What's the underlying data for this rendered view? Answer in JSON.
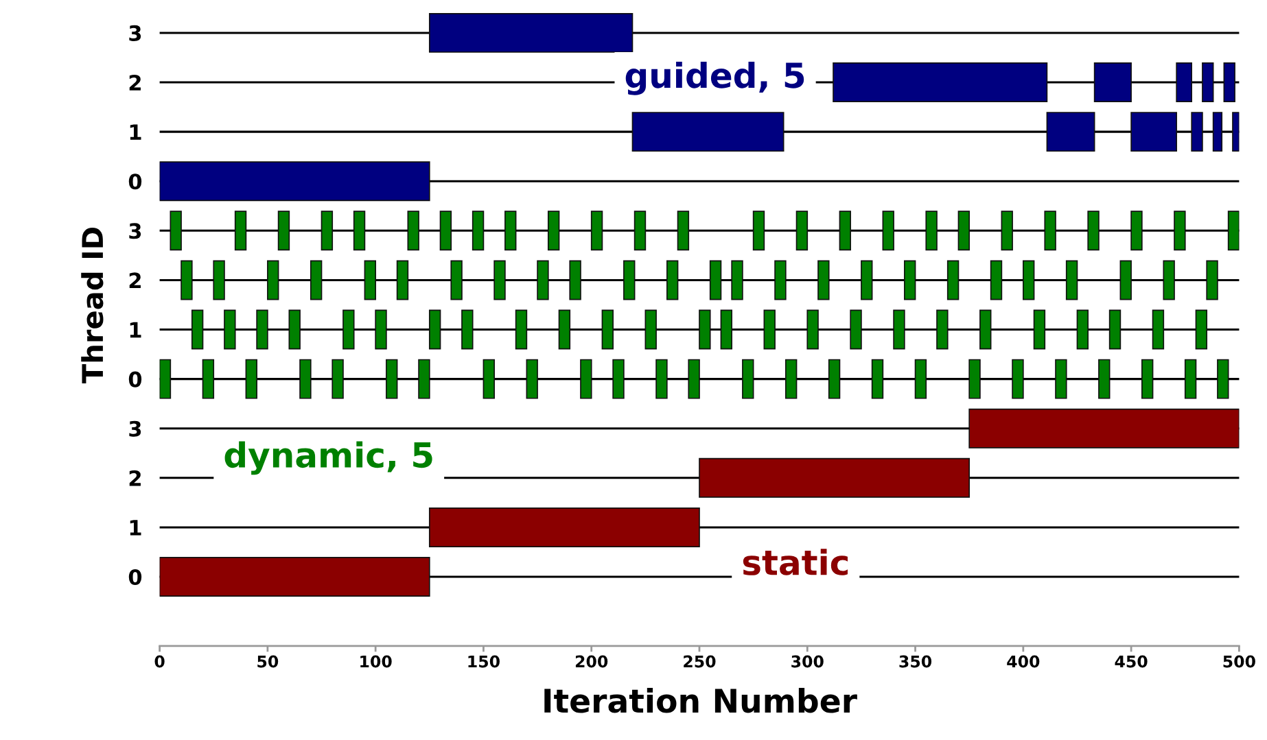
{
  "chart_data": [
    {
      "type": "bar",
      "orientation": "horizontal",
      "categories": [
        "3",
        "2",
        "1",
        "0"
      ],
      "xlim": [
        0,
        500
      ],
      "xticks": [
        0,
        50,
        100,
        150,
        200,
        250,
        300,
        350,
        400,
        450,
        500
      ],
      "grid": "y",
      "tick_labels": "y",
      "annotations": [
        "guided, 5"
      ],
      "series": [
        {
          "color": "#000080",
          "base": [
            125,
            312,
            219,
            0
          ],
          "values": [
            94,
            99,
            70,
            125
          ]
        },
        {
          "color": "#000080",
          "base": [
            null,
            433,
            411,
            null
          ],
          "values": [
            null,
            17,
            22,
            null
          ]
        },
        {
          "color": "#000080",
          "base": [
            null,
            471,
            450,
            null
          ],
          "values": [
            null,
            7,
            21,
            null
          ]
        },
        {
          "color": "#000080",
          "base": [
            null,
            483,
            478,
            null
          ],
          "values": [
            null,
            5,
            5,
            null
          ]
        },
        {
          "color": "#000080",
          "base": [
            null,
            493,
            488,
            null
          ],
          "values": [
            null,
            5,
            4,
            null
          ]
        },
        {
          "color": "#000080",
          "base": [
            null,
            null,
            497,
            null
          ],
          "values": [
            null,
            null,
            3,
            null
          ]
        }
      ]
    },
    {
      "type": "bar",
      "orientation": "horizontal",
      "categories": [
        "3",
        "2",
        "1",
        "0"
      ],
      "xlim": [
        0,
        500
      ],
      "xticks": [
        0,
        50,
        100,
        150,
        200,
        250,
        300,
        350,
        400,
        450,
        500
      ],
      "grid": "y",
      "tick_labels": "y",
      "ylabel": "Thread ID",
      "annotations": [
        "dynamic, 5"
      ],
      "series": [
        {
          "color": "#008000",
          "base": [
            5,
            10,
            15,
            0
          ],
          "values": [
            5,
            5,
            5,
            5
          ]
        },
        {
          "color": "#008000",
          "base": [
            35,
            25,
            30,
            20
          ],
          "values": [
            5,
            5,
            5,
            5
          ]
        },
        {
          "color": "#008000",
          "base": [
            55,
            50,
            45,
            40
          ],
          "values": [
            5,
            5,
            5,
            5
          ]
        },
        {
          "color": "#008000",
          "base": [
            75,
            70,
            60,
            65
          ],
          "values": [
            5,
            5,
            5,
            5
          ]
        },
        {
          "color": "#008000",
          "base": [
            90,
            95,
            85,
            80
          ],
          "values": [
            5,
            5,
            5,
            5
          ]
        },
        {
          "color": "#008000",
          "base": [
            115,
            110,
            100,
            105
          ],
          "values": [
            5,
            5,
            5,
            5
          ]
        },
        {
          "color": "#008000",
          "base": [
            130,
            135,
            125,
            120
          ],
          "values": [
            5,
            5,
            5,
            5
          ]
        },
        {
          "color": "#008000",
          "base": [
            145,
            155,
            140,
            150
          ],
          "values": [
            5,
            5,
            5,
            5
          ]
        },
        {
          "color": "#008000",
          "base": [
            160,
            175,
            165,
            170
          ],
          "values": [
            5,
            5,
            5,
            5
          ]
        },
        {
          "color": "#008000",
          "base": [
            180,
            190,
            185,
            195
          ],
          "values": [
            5,
            5,
            5,
            5
          ]
        },
        {
          "color": "#008000",
          "base": [
            200,
            215,
            205,
            210
          ],
          "values": [
            5,
            5,
            5,
            5
          ]
        },
        {
          "color": "#008000",
          "base": [
            220,
            235,
            225,
            230
          ],
          "values": [
            5,
            5,
            5,
            5
          ]
        },
        {
          "color": "#008000",
          "base": [
            240,
            255,
            250,
            245
          ],
          "values": [
            5,
            5,
            5,
            5
          ]
        },
        {
          "color": "#008000",
          "base": [
            275,
            265,
            260,
            270
          ],
          "values": [
            5,
            5,
            5,
            5
          ]
        },
        {
          "color": "#008000",
          "base": [
            295,
            285,
            280,
            290
          ],
          "values": [
            5,
            5,
            5,
            5
          ]
        },
        {
          "color": "#008000",
          "base": [
            315,
            305,
            300,
            310
          ],
          "values": [
            5,
            5,
            5,
            5
          ]
        },
        {
          "color": "#008000",
          "base": [
            335,
            325,
            320,
            330
          ],
          "values": [
            5,
            5,
            5,
            5
          ]
        },
        {
          "color": "#008000",
          "base": [
            355,
            345,
            340,
            350
          ],
          "values": [
            5,
            5,
            5,
            5
          ]
        },
        {
          "color": "#008000",
          "base": [
            370,
            365,
            360,
            375
          ],
          "values": [
            5,
            5,
            5,
            5
          ]
        },
        {
          "color": "#008000",
          "base": [
            390,
            385,
            380,
            395
          ],
          "values": [
            5,
            5,
            5,
            5
          ]
        },
        {
          "color": "#008000",
          "base": [
            410,
            400,
            405,
            415
          ],
          "values": [
            5,
            5,
            5,
            5
          ]
        },
        {
          "color": "#008000",
          "base": [
            430,
            420,
            425,
            435
          ],
          "values": [
            5,
            5,
            5,
            5
          ]
        },
        {
          "color": "#008000",
          "base": [
            450,
            445,
            440,
            455
          ],
          "values": [
            5,
            5,
            5,
            5
          ]
        },
        {
          "color": "#008000",
          "base": [
            470,
            465,
            460,
            475
          ],
          "values": [
            5,
            5,
            5,
            5
          ]
        },
        {
          "color": "#008000",
          "base": [
            495,
            485,
            480,
            490
          ],
          "values": [
            5,
            5,
            5,
            5
          ]
        }
      ]
    },
    {
      "type": "bar",
      "orientation": "horizontal",
      "categories": [
        "3",
        "2",
        "1",
        "0"
      ],
      "xlim": [
        0,
        500
      ],
      "xticks": [
        0,
        50,
        100,
        150,
        200,
        250,
        300,
        350,
        400,
        450,
        500
      ],
      "grid": "y",
      "xlabel": "Iteration Number",
      "annotations": [
        "static"
      ],
      "series": [
        {
          "color": "#8b0000",
          "base": [
            375,
            250,
            125,
            0
          ],
          "values": [
            125,
            125,
            125,
            125
          ]
        }
      ]
    }
  ]
}
